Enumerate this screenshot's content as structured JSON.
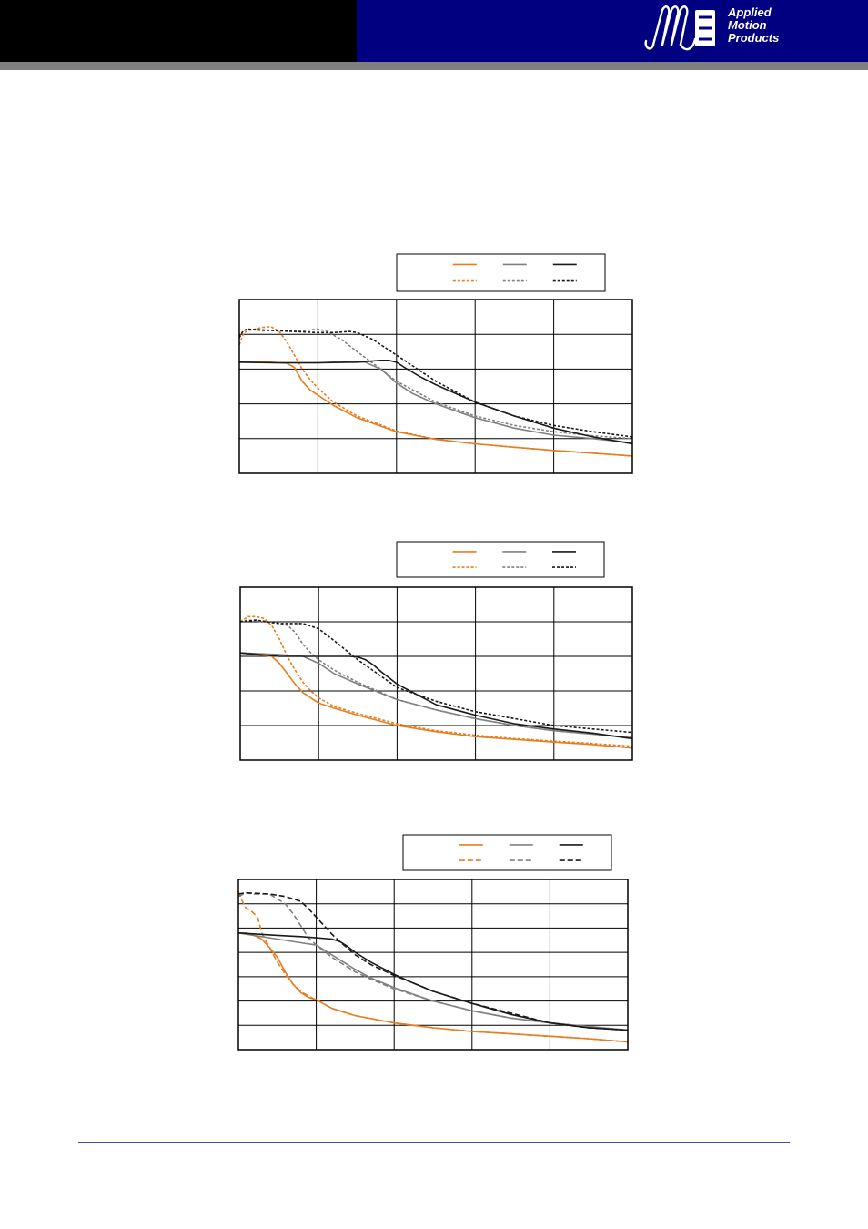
{
  "header": {
    "logo_text": "Applied\nMotion\nProducts",
    "colors": {
      "left_band": "#000000",
      "right_band": "#000080",
      "rule": "#7f7f7f"
    }
  },
  "footer": {
    "rule_color": "#4a4aa8"
  },
  "chart_data": [
    {
      "type": "line",
      "title": "",
      "xlabel": "",
      "ylabel": "",
      "xlim": [
        0,
        50
      ],
      "ylim": [
        0,
        5
      ],
      "grid": true,
      "legend": "top-center",
      "series": [
        {
          "color": "#e87d1e",
          "style": "solid",
          "x": [
            0,
            2,
            4,
            6,
            7,
            8,
            9,
            10,
            12,
            15,
            20,
            25,
            30,
            35,
            40,
            45,
            50
          ],
          "y": [
            3.2,
            3.21,
            3.2,
            3.17,
            3.05,
            2.65,
            2.4,
            2.25,
            1.95,
            1.6,
            1.2,
            0.98,
            0.85,
            0.75,
            0.66,
            0.58,
            0.5
          ]
        },
        {
          "color": "#e87d1e",
          "style": "dashed",
          "x": [
            0,
            0.5,
            1,
            2,
            3,
            4,
            5,
            6,
            7,
            8,
            9,
            10,
            12,
            15,
            20,
            25,
            30,
            35,
            40,
            45,
            50
          ],
          "y": [
            3.7,
            4.0,
            4.1,
            4.15,
            4.2,
            4.22,
            4.1,
            3.8,
            3.4,
            3.0,
            2.7,
            2.45,
            2.05,
            1.65,
            1.22,
            0.98,
            0.85,
            0.75,
            0.66,
            0.58,
            0.5
          ]
        },
        {
          "color": "#808080",
          "style": "solid",
          "x": [
            0,
            5,
            10,
            14,
            16,
            18,
            20,
            22,
            25,
            30,
            35,
            40,
            45,
            50
          ],
          "y": [
            3.2,
            3.18,
            3.18,
            3.22,
            3.2,
            3.0,
            2.6,
            2.3,
            2.0,
            1.6,
            1.3,
            1.1,
            1.0,
            0.88
          ]
        },
        {
          "color": "#808080",
          "style": "dashed",
          "x": [
            0,
            0.5,
            1,
            3,
            5,
            8,
            10,
            11,
            13,
            15,
            18,
            20,
            25,
            30,
            35,
            40,
            45,
            50
          ],
          "y": [
            3.9,
            4.1,
            4.15,
            4.1,
            4.12,
            4.1,
            4.15,
            4.1,
            3.85,
            3.5,
            3.0,
            2.65,
            2.05,
            1.65,
            1.38,
            1.2,
            1.08,
            1.0
          ]
        },
        {
          "color": "#1a1a1a",
          "style": "solid",
          "x": [
            0,
            5,
            10,
            15,
            18,
            19,
            20,
            21,
            23,
            25,
            30,
            35,
            40,
            45,
            50
          ],
          "y": [
            3.2,
            3.18,
            3.18,
            3.2,
            3.25,
            3.25,
            3.2,
            3.05,
            2.78,
            2.55,
            2.05,
            1.65,
            1.3,
            1.05,
            0.85
          ]
        },
        {
          "color": "#1a1a1a",
          "style": "dashed",
          "x": [
            0,
            0.5,
            1,
            5,
            10,
            12,
            14,
            15,
            17,
            19,
            21,
            25,
            30,
            35,
            40,
            45,
            50
          ],
          "y": [
            3.9,
            4.1,
            4.15,
            4.1,
            4.05,
            4.05,
            4.08,
            4.05,
            3.85,
            3.55,
            3.25,
            2.65,
            2.05,
            1.65,
            1.38,
            1.2,
            1.05
          ]
        }
      ]
    },
    {
      "type": "line",
      "title": "",
      "xlabel": "",
      "ylabel": "",
      "xlim": [
        0,
        50
      ],
      "ylim": [
        0,
        5
      ],
      "grid": true,
      "legend": "top-center",
      "series": [
        {
          "color": "#e87d1e",
          "style": "solid",
          "x": [
            0,
            2,
            4,
            5,
            6,
            7,
            8,
            9,
            10,
            12,
            15,
            20,
            25,
            30,
            35,
            40,
            45,
            50
          ],
          "y": [
            3.1,
            3.05,
            3.0,
            2.8,
            2.5,
            2.2,
            1.95,
            1.8,
            1.65,
            1.5,
            1.3,
            1.0,
            0.82,
            0.68,
            0.6,
            0.52,
            0.45,
            0.35
          ]
        },
        {
          "color": "#e87d1e",
          "style": "dashed",
          "x": [
            0,
            1,
            2,
            3,
            4,
            5,
            6,
            7,
            8,
            9,
            10,
            12,
            15,
            20,
            25,
            30,
            35,
            40,
            45,
            50
          ],
          "y": [
            4.0,
            4.15,
            4.15,
            4.1,
            3.9,
            3.5,
            3.0,
            2.6,
            2.25,
            2.0,
            1.8,
            1.55,
            1.35,
            1.05,
            0.85,
            0.72,
            0.62,
            0.55,
            0.48,
            0.4
          ]
        },
        {
          "color": "#808080",
          "style": "solid",
          "x": [
            0,
            5,
            8,
            10,
            12,
            15,
            20,
            25,
            30,
            35,
            40,
            45,
            50
          ],
          "y": [
            3.1,
            3.05,
            3.0,
            2.8,
            2.5,
            2.2,
            1.75,
            1.45,
            1.2,
            1.0,
            0.85,
            0.75,
            0.65
          ]
        },
        {
          "color": "#808080",
          "style": "dashed",
          "x": [
            0,
            1,
            3,
            5,
            6,
            7,
            8,
            9,
            10,
            12,
            15,
            20,
            25,
            30,
            35,
            40,
            45,
            50
          ],
          "y": [
            4.0,
            4.05,
            4.0,
            3.95,
            3.9,
            3.7,
            3.35,
            3.1,
            2.9,
            2.6,
            2.25,
            1.75,
            1.45,
            1.2,
            1.0,
            0.85,
            0.75,
            0.65
          ]
        },
        {
          "color": "#1a1a1a",
          "style": "solid",
          "x": [
            0,
            5,
            10,
            14,
            15,
            16,
            17,
            18,
            20,
            25,
            30,
            35,
            40,
            45,
            50
          ],
          "y": [
            3.1,
            3.0,
            3.0,
            3.0,
            2.98,
            2.9,
            2.75,
            2.55,
            2.2,
            1.6,
            1.3,
            1.05,
            0.9,
            0.78,
            0.62
          ]
        },
        {
          "color": "#1a1a1a",
          "style": "dashed",
          "x": [
            0,
            2,
            5,
            8,
            10,
            12,
            15,
            20,
            25,
            30,
            35,
            40,
            45,
            50
          ],
          "y": [
            4.0,
            4.05,
            3.95,
            3.95,
            3.8,
            3.45,
            2.9,
            2.1,
            1.7,
            1.4,
            1.2,
            1.0,
            0.9,
            0.8
          ]
        }
      ]
    },
    {
      "type": "line",
      "title": "",
      "xlabel": "",
      "ylabel": "",
      "xlim": [
        0,
        50
      ],
      "ylim": [
        0,
        7
      ],
      "grid": true,
      "legend": "top-center",
      "series": [
        {
          "color": "#e87d1e",
          "style": "solid",
          "x": [
            0,
            1,
            2,
            3,
            4,
            5,
            6,
            7,
            8,
            9,
            10,
            12,
            15,
            20,
            25,
            30,
            35,
            40,
            45,
            50
          ],
          "y": [
            4.8,
            4.8,
            4.7,
            4.55,
            4.2,
            3.8,
            3.2,
            2.7,
            2.35,
            2.15,
            2.05,
            1.7,
            1.4,
            1.1,
            0.9,
            0.75,
            0.65,
            0.55,
            0.45,
            0.32
          ]
        },
        {
          "color": "#e87d1e",
          "style": "dashed",
          "x": [
            0,
            0.5,
            1,
            1.5,
            2,
            2.5,
            3,
            4,
            5,
            6,
            7,
            8,
            9,
            10,
            12,
            15,
            20,
            25,
            30,
            35,
            40,
            45,
            50
          ],
          "y": [
            6.5,
            6.1,
            5.8,
            5.75,
            5.6,
            5.4,
            4.8,
            4.2,
            3.6,
            3.1,
            2.7,
            2.4,
            2.2,
            2.05,
            1.7,
            1.4,
            1.1,
            0.9,
            0.75,
            0.65,
            0.55,
            0.45,
            0.32
          ]
        },
        {
          "color": "#808080",
          "style": "solid",
          "x": [
            0,
            5,
            8,
            10,
            11,
            12,
            14,
            15,
            17,
            20,
            25,
            30,
            35,
            40,
            45,
            50
          ],
          "y": [
            4.8,
            4.55,
            4.4,
            4.3,
            4.1,
            3.9,
            3.5,
            3.3,
            2.95,
            2.55,
            2.0,
            1.6,
            1.3,
            1.1,
            0.95,
            0.8
          ]
        },
        {
          "color": "#808080",
          "style": "dashed",
          "x": [
            0,
            1,
            2,
            4,
            5,
            6,
            7,
            8,
            9,
            10,
            12,
            15,
            17,
            20,
            25,
            30,
            35,
            40,
            45,
            50
          ],
          "y": [
            6.3,
            6.45,
            6.4,
            6.4,
            6.2,
            6.0,
            5.6,
            5.1,
            4.6,
            4.3,
            3.8,
            3.2,
            2.9,
            2.5,
            2.0,
            1.6,
            1.3,
            1.1,
            0.95,
            0.8
          ]
        },
        {
          "color": "#1a1a1a",
          "style": "solid",
          "x": [
            0,
            5,
            8,
            10,
            12,
            13,
            14,
            15,
            16,
            17,
            20,
            22,
            25,
            30,
            35,
            40,
            45,
            50
          ],
          "y": [
            4.8,
            4.7,
            4.65,
            4.6,
            4.55,
            4.45,
            4.25,
            4.0,
            3.8,
            3.6,
            3.1,
            2.8,
            2.4,
            1.9,
            1.45,
            1.1,
            0.9,
            0.8
          ]
        },
        {
          "color": "#1a1a1a",
          "style": "dashed",
          "x": [
            0,
            1,
            4,
            6,
            8,
            9,
            10,
            11,
            12,
            13,
            15,
            17,
            20,
            22,
            25,
            30,
            35,
            40,
            45,
            50
          ],
          "y": [
            6.4,
            6.45,
            6.4,
            6.3,
            6.1,
            5.8,
            5.45,
            5.1,
            4.75,
            4.45,
            3.9,
            3.5,
            3.05,
            2.8,
            2.4,
            1.9,
            1.5,
            1.1,
            0.9,
            0.8
          ]
        }
      ]
    }
  ]
}
